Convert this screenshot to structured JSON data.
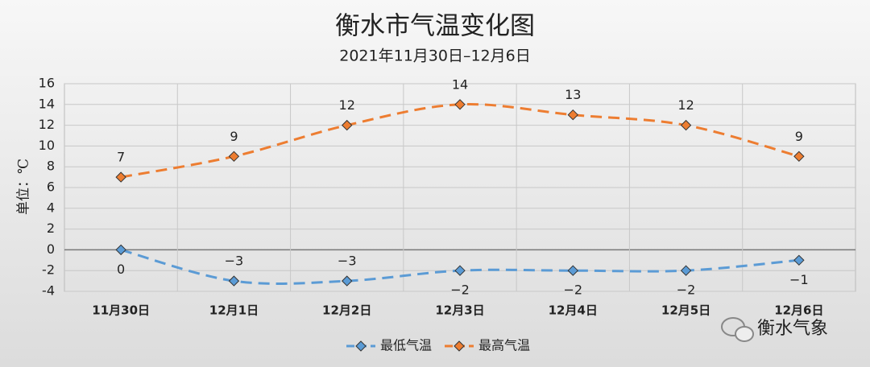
{
  "chart_data": {
    "type": "line",
    "title": "衡水市气温变化图",
    "subtitle": "2021年11月30日–12月6日",
    "y_label": "单位：℃",
    "categories": [
      "11月30日",
      "12月1日",
      "12月2日",
      "12月3日",
      "12月4日",
      "12月5日",
      "12月6日"
    ],
    "series": [
      {
        "name": "最低气温",
        "color": "#5b9bd5",
        "values": [
          0,
          -3,
          -3,
          -2,
          -2,
          -2,
          -1
        ],
        "value_labels": [
          "0",
          "−3",
          "−3",
          "−2",
          "−2",
          "−2",
          "−1"
        ]
      },
      {
        "name": "最高气温",
        "color": "#ed7d31",
        "values": [
          7,
          9,
          12,
          14,
          13,
          12,
          9
        ]
      }
    ],
    "ylim": [
      -4,
      16
    ],
    "yticks": [
      -4,
      -2,
      0,
      2,
      4,
      6,
      8,
      10,
      12,
      14,
      16
    ],
    "grid": true,
    "legend": "bottom",
    "watermark": "衡水气象"
  }
}
